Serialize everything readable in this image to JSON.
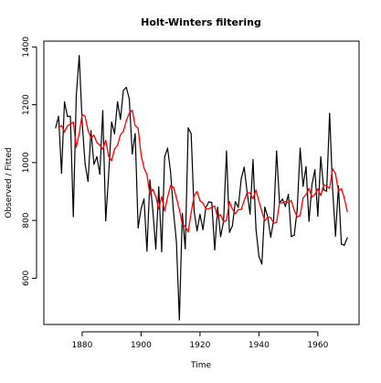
{
  "chart_data": {
    "type": "line",
    "title": "Holt-Winters filtering",
    "xlabel": "Time",
    "ylabel": "Observed / Fitted",
    "xlim": [
      1867,
      1974
    ],
    "ylim": [
      440,
      1420
    ],
    "x_ticks": [
      1880,
      1900,
      1920,
      1940,
      1960
    ],
    "y_ticks": [
      600,
      800,
      1000,
      1200,
      1400
    ],
    "x_tick_labels": [
      "1880",
      "1900",
      "1920",
      "1940",
      "1960"
    ],
    "y_tick_labels": [
      "600",
      "800",
      "1000",
      "1200",
      "1400"
    ],
    "grid": false,
    "legend": "none",
    "series": [
      {
        "role": "observed",
        "color": "#000000",
        "x": [
          1871,
          1872,
          1873,
          1874,
          1875,
          1876,
          1877,
          1878,
          1879,
          1880,
          1881,
          1882,
          1883,
          1884,
          1885,
          1886,
          1887,
          1888,
          1889,
          1890,
          1891,
          1892,
          1893,
          1894,
          1895,
          1896,
          1897,
          1898,
          1899,
          1900,
          1901,
          1902,
          1903,
          1904,
          1905,
          1906,
          1907,
          1908,
          1909,
          1910,
          1911,
          1912,
          1913,
          1914,
          1915,
          1916,
          1917,
          1918,
          1919,
          1920,
          1921,
          1922,
          1923,
          1924,
          1925,
          1926,
          1927,
          1928,
          1929,
          1930,
          1931,
          1932,
          1933,
          1934,
          1935,
          1936,
          1937,
          1938,
          1939,
          1940,
          1941,
          1942,
          1943,
          1944,
          1945,
          1946,
          1947,
          1948,
          1949,
          1950,
          1951,
          1952,
          1953,
          1954,
          1955,
          1956,
          1957,
          1958,
          1959,
          1960,
          1961,
          1962,
          1963,
          1964,
          1965,
          1966,
          1967,
          1968,
          1969,
          1970
        ],
        "values": [
          1120,
          1160,
          963,
          1210,
          1160,
          1160,
          813,
          1230,
          1370,
          1140,
          995,
          935,
          1110,
          994,
          1020,
          960,
          1180,
          799,
          958,
          1140,
          1100,
          1210,
          1150,
          1250,
          1260,
          1220,
          1030,
          1100,
          774,
          840,
          874,
          694,
          940,
          833,
          701,
          916,
          692,
          1020,
          1050,
          969,
          831,
          726,
          456,
          824,
          702,
          1120,
          1100,
          832,
          764,
          821,
          768,
          845,
          864,
          862,
          698,
          845,
          744,
          796,
          1040,
          759,
          781,
          865,
          845,
          944,
          984,
          897,
          822,
          1010,
          771,
          676,
          649,
          846,
          812,
          742,
          801,
          1040,
          860,
          874,
          848,
          890,
          744,
          749,
          838,
          1050,
          918,
          986,
          797,
          923,
          975,
          815,
          1020,
          906,
          901,
          1170,
          912,
          746,
          919,
          718,
          714,
          740
        ]
      },
      {
        "role": "fitted",
        "color": "#ff0000",
        "x": [
          1872,
          1873,
          1874,
          1875,
          1876,
          1877,
          1878,
          1879,
          1880,
          1881,
          1882,
          1883,
          1884,
          1885,
          1886,
          1887,
          1888,
          1889,
          1890,
          1891,
          1892,
          1893,
          1894,
          1895,
          1896,
          1897,
          1898,
          1899,
          1900,
          1901,
          1902,
          1903,
          1904,
          1905,
          1906,
          1907,
          1908,
          1909,
          1910,
          1911,
          1912,
          1913,
          1914,
          1915,
          1916,
          1917,
          1918,
          1919,
          1920,
          1921,
          1922,
          1923,
          1924,
          1925,
          1926,
          1927,
          1928,
          1929,
          1930,
          1931,
          1932,
          1933,
          1934,
          1935,
          1936,
          1937,
          1938,
          1939,
          1940,
          1941,
          1942,
          1943,
          1944,
          1945,
          1946,
          1947,
          1948,
          1949,
          1950,
          1951,
          1952,
          1953,
          1954,
          1955,
          1956,
          1957,
          1958,
          1959,
          1960,
          1961,
          1962,
          1963,
          1964,
          1965,
          1966,
          1967,
          1968,
          1969,
          1970
        ],
        "values": [
          1120,
          1128,
          1106,
          1127,
          1133,
          1140,
          1053,
          1100,
          1167,
          1160,
          1111,
          1085,
          1095,
          1069,
          1060,
          1046,
          1077,
          1022,
          1006,
          1047,
          1059,
          1096,
          1108,
          1145,
          1171,
          1181,
          1128,
          1119,
          1027,
          981,
          958,
          889,
          908,
          882,
          840,
          882,
          832,
          880,
          920,
          915,
          878,
          837,
          788,
          779,
          760,
          827,
          885,
          900,
          868,
          860,
          840,
          840,
          845,
          850,
          810,
          820,
          795,
          800,
          865,
          839,
          823,
          837,
          838,
          868,
          897,
          894,
          875,
          905,
          867,
          831,
          798,
          812,
          810,
          790,
          793,
          860,
          861,
          865,
          861,
          869,
          834,
          812,
          817,
          878,
          889,
          910,
          880,
          890,
          909,
          886,
          924,
          918,
          911,
          978,
          962,
          900,
          910,
          877,
          830
        ]
      }
    ]
  }
}
